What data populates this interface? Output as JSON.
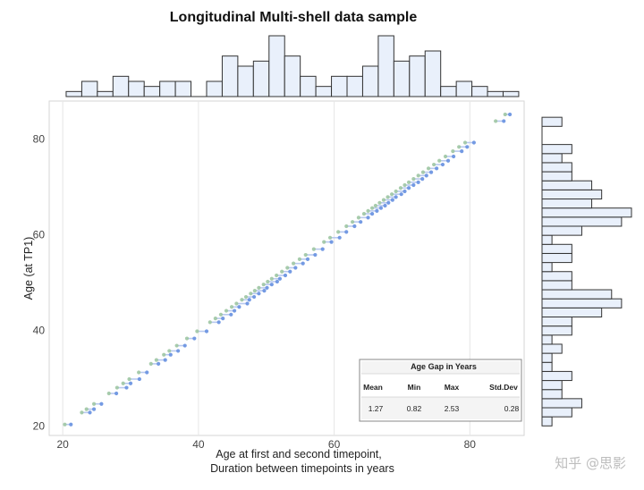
{
  "chart_data": {
    "type": "scatter",
    "title": "Longitudinal Multi-shell data sample",
    "xlabel_line1": "Age at first and second timepoint,",
    "xlabel_line2": "Duration between timepoints in years",
    "ylabel": "Age (at TP1)",
    "xlim": [
      18,
      88
    ],
    "ylim": [
      18,
      88
    ],
    "x_ticks": [
      20,
      40,
      60,
      80
    ],
    "y_ticks": [
      20,
      40,
      60,
      80
    ],
    "grid": "vertical",
    "series": [
      {
        "name": "subjects",
        "note": "each segment: x from age at TP1 to age at TP2, y = age at TP1",
        "points": [
          [
            20.3,
            20.3,
            21.2
          ],
          [
            22.8,
            22.8,
            24.0
          ],
          [
            23.5,
            23.5,
            24.6
          ],
          [
            24.6,
            24.6,
            25.7
          ],
          [
            26.8,
            26.8,
            27.9
          ],
          [
            28.0,
            28.0,
            29.4
          ],
          [
            28.9,
            28.9,
            30.0
          ],
          [
            29.8,
            29.8,
            31.3
          ],
          [
            31.2,
            31.2,
            32.4
          ],
          [
            33.0,
            33.0,
            34.1
          ],
          [
            33.8,
            33.8,
            35.1
          ],
          [
            34.9,
            34.9,
            35.9
          ],
          [
            35.7,
            35.7,
            37.0
          ],
          [
            36.8,
            36.8,
            38.0
          ],
          [
            38.3,
            38.3,
            39.4
          ],
          [
            39.8,
            39.8,
            41.2
          ],
          [
            41.7,
            41.7,
            43.0
          ],
          [
            42.5,
            42.5,
            43.6
          ],
          [
            43.3,
            43.3,
            44.8
          ],
          [
            44.1,
            44.1,
            45.3
          ],
          [
            44.9,
            44.9,
            46.0
          ],
          [
            45.6,
            45.6,
            47.2
          ],
          [
            46.4,
            46.4,
            47.5
          ],
          [
            47.0,
            47.0,
            48.2
          ],
          [
            47.7,
            47.7,
            48.9
          ],
          [
            48.3,
            48.3,
            49.7
          ],
          [
            48.9,
            48.9,
            50.1
          ],
          [
            49.6,
            49.6,
            50.8
          ],
          [
            50.2,
            50.2,
            51.6
          ],
          [
            50.8,
            50.8,
            52.0
          ],
          [
            51.5,
            51.5,
            52.8
          ],
          [
            52.3,
            52.3,
            53.5
          ],
          [
            53.1,
            53.1,
            54.3
          ],
          [
            54.0,
            54.0,
            55.4
          ],
          [
            54.9,
            54.9,
            56.1
          ],
          [
            55.8,
            55.8,
            57.2
          ],
          [
            57.0,
            57.0,
            58.3
          ],
          [
            58.5,
            58.5,
            59.6
          ],
          [
            59.4,
            59.4,
            60.8
          ],
          [
            60.6,
            60.6,
            61.8
          ],
          [
            61.8,
            61.8,
            63.0
          ],
          [
            62.7,
            62.7,
            63.9
          ],
          [
            63.6,
            63.6,
            65.0
          ],
          [
            64.4,
            64.4,
            65.6
          ],
          [
            65.0,
            65.0,
            66.3
          ],
          [
            65.6,
            65.6,
            66.9
          ],
          [
            66.1,
            66.1,
            67.5
          ],
          [
            66.7,
            66.7,
            68.0
          ],
          [
            67.3,
            67.3,
            68.6
          ],
          [
            67.9,
            67.9,
            69.1
          ],
          [
            68.5,
            68.5,
            69.9
          ],
          [
            69.1,
            69.1,
            70.4
          ],
          [
            69.8,
            69.8,
            71.0
          ],
          [
            70.4,
            70.4,
            71.7
          ],
          [
            71.0,
            71.0,
            72.4
          ],
          [
            71.7,
            71.7,
            73.0
          ],
          [
            72.4,
            72.4,
            73.6
          ],
          [
            73.1,
            73.1,
            74.3
          ],
          [
            73.9,
            73.9,
            75.1
          ],
          [
            74.7,
            74.7,
            76.0
          ],
          [
            75.5,
            75.5,
            76.8
          ],
          [
            76.4,
            76.4,
            77.6
          ],
          [
            77.5,
            77.5,
            78.8
          ],
          [
            78.4,
            78.4,
            79.6
          ],
          [
            79.3,
            79.3,
            80.6
          ],
          [
            83.8,
            83.8,
            85.0
          ],
          [
            85.2,
            85.2,
            85.9
          ]
        ]
      }
    ],
    "top_histogram": {
      "bin_edges": [
        20.5,
        22.8,
        25.1,
        27.4,
        29.7,
        32.0,
        34.3,
        36.6,
        38.9,
        41.2,
        43.5,
        45.8,
        48.1,
        50.4,
        52.7,
        55.0,
        57.3,
        59.6,
        61.9,
        64.2,
        66.5,
        68.8,
        71.1,
        73.4,
        75.7,
        78.0,
        80.3,
        82.6,
        84.9,
        87.2
      ],
      "counts": [
        1,
        3,
        1,
        4,
        3,
        2,
        3,
        3,
        0,
        3,
        8,
        6,
        7,
        12,
        8,
        4,
        2,
        4,
        4,
        6,
        12,
        7,
        8,
        9,
        2,
        3,
        2,
        1,
        1
      ]
    },
    "right_histogram": {
      "bin_edges": [
        20.0,
        21.9,
        23.8,
        25.7,
        27.6,
        29.5,
        31.4,
        33.3,
        35.2,
        37.1,
        39.0,
        40.9,
        42.8,
        44.7,
        46.6,
        48.5,
        50.4,
        52.3,
        54.2,
        56.1,
        58.0,
        59.9,
        61.8,
        63.7,
        65.6,
        67.5,
        69.4,
        71.3,
        73.2,
        75.1,
        77.0,
        78.9,
        80.8,
        82.7,
        84.6
      ],
      "counts": [
        1,
        3,
        4,
        2,
        2,
        3,
        1,
        1,
        2,
        1,
        3,
        3,
        6,
        8,
        7,
        3,
        3,
        1,
        3,
        3,
        1,
        4,
        8,
        9,
        5,
        6,
        5,
        3,
        3,
        2,
        3,
        0,
        0,
        2
      ]
    },
    "table": {
      "title": "Age Gap in Years",
      "headers": [
        "Mean",
        "Min",
        "Max",
        "Std.Dev"
      ],
      "values": [
        "1.27",
        "0.82",
        "2.53",
        "0.28"
      ]
    },
    "colors": {
      "point_tp1": "#9fc7a3",
      "point_tp2": "#6e96e2",
      "segment": "#b8c9ef",
      "hist_fill": "#e9f0fb",
      "hist_stroke": "#333333",
      "panel_border": "#d6d6d6",
      "grid": "#e6e6e6"
    }
  },
  "watermark": "知乎 @思影"
}
